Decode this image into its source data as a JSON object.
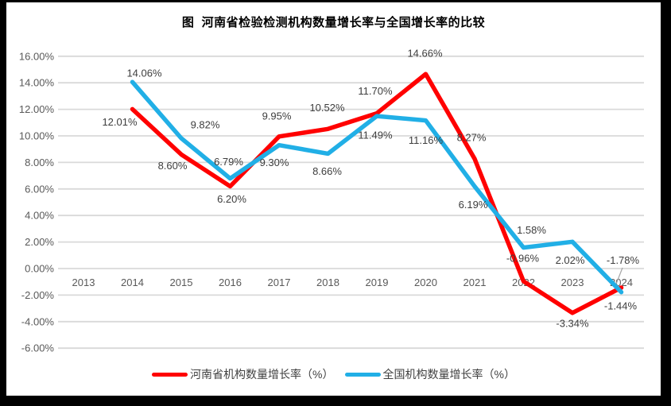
{
  "chart_data": {
    "type": "line",
    "title": "图  河南省检验检测机构数量增长率与全国增长率的比较",
    "categories": [
      "2013",
      "2014",
      "2015",
      "2016",
      "2017",
      "2018",
      "2019",
      "2020",
      "2021",
      "2022",
      "2023",
      "2024"
    ],
    "series": [
      {
        "name": "河南省机构数量增长率（%）",
        "color": "#FF0000",
        "values": [
          null,
          12.01,
          8.6,
          6.2,
          9.95,
          10.52,
          11.7,
          14.66,
          8.27,
          -0.96,
          -3.34,
          -1.44
        ]
      },
      {
        "name": "全国机构数量增长率（%）",
        "color": "#21AFE6",
        "values": [
          null,
          14.06,
          9.82,
          6.79,
          9.3,
          8.66,
          11.49,
          11.16,
          6.19,
          1.58,
          2.02,
          -1.78
        ]
      }
    ],
    "ylim": [
      -6,
      16
    ],
    "ytick_values": [
      16,
      14,
      12,
      10,
      8,
      6,
      4,
      2,
      0,
      -2,
      -4,
      -6
    ],
    "ytick_labels": [
      "16.00%",
      "14.00%",
      "12.00%",
      "10.00%",
      "8.00%",
      "6.00%",
      "4.00%",
      "2.00%",
      "0.00%",
      "-2.00%",
      "-4.00%",
      "-6.00%"
    ],
    "value_label_format": "0.00%",
    "grid": true,
    "legend_position": "bottom",
    "colors": {
      "grid": "#D9D9D9",
      "axis_text": "#595959",
      "data_label_text": "#3D3D3D",
      "leader_line": "#A6A6A6",
      "title_text": "#000000",
      "plot_background": "#FFFFFF",
      "frame_background": "#000000"
    }
  }
}
